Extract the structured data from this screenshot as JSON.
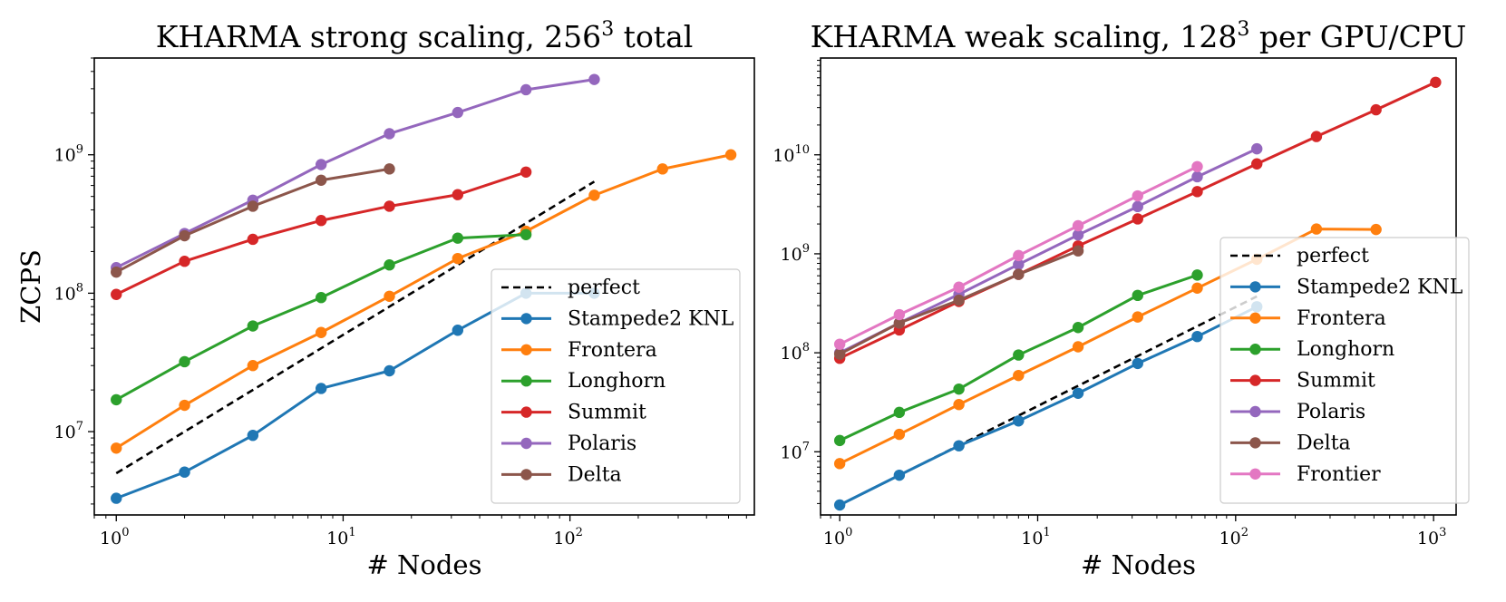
{
  "chart_data": [
    {
      "type": "line",
      "title": "KHARMA strong scaling, 256",
      "title_sup": "3",
      "title_suffix": " total",
      "xlabel": "# Nodes",
      "ylabel": "ZCPS",
      "xscale": "log",
      "yscale": "log",
      "xlim": [
        0.8,
        650
      ],
      "ylim": [
        2500000,
        5000000000
      ],
      "xticks": [
        {
          "value": 1,
          "base": "10",
          "exp": "0"
        },
        {
          "value": 10,
          "base": "10",
          "exp": "1"
        },
        {
          "value": 100,
          "base": "10",
          "exp": "2"
        }
      ],
      "yticks": [
        {
          "value": 10000000,
          "base": "10",
          "exp": "7"
        },
        {
          "value": 100000000,
          "base": "10",
          "exp": "8"
        },
        {
          "value": 1000000000,
          "base": "10",
          "exp": "9"
        }
      ],
      "legend_position": "lower-right",
      "series": [
        {
          "name": "perfect",
          "color": "#000000",
          "dashed": true,
          "markers": false,
          "x": [
            1,
            128
          ],
          "y": [
            5000000,
            640000000
          ]
        },
        {
          "name": "Stampede2 KNL",
          "color": "#1f77b4",
          "dashed": false,
          "markers": true,
          "x": [
            1,
            2,
            4,
            8,
            16,
            32,
            64,
            128
          ],
          "y": [
            3300000,
            5100000,
            9400000,
            20500000,
            27500000,
            54000000,
            100000000,
            100000000
          ]
        },
        {
          "name": "Frontera",
          "color": "#ff7f0e",
          "dashed": false,
          "markers": true,
          "x": [
            1,
            2,
            4,
            8,
            16,
            32,
            64,
            128,
            256,
            512
          ],
          "y": [
            7600000,
            15500000,
            30000000,
            52000000,
            95000000,
            178000000,
            280000000,
            510000000,
            790000000,
            1000000000
          ]
        },
        {
          "name": "Longhorn",
          "color": "#2ca02c",
          "dashed": false,
          "markers": true,
          "x": [
            1,
            2,
            4,
            8,
            16,
            32,
            64
          ],
          "y": [
            17000000,
            32000000,
            58000000,
            93000000,
            160000000,
            250000000,
            265000000
          ]
        },
        {
          "name": "Summit",
          "color": "#d62728",
          "dashed": false,
          "markers": true,
          "x": [
            1,
            2,
            4,
            8,
            16,
            32,
            64
          ],
          "y": [
            98000000,
            170000000,
            245000000,
            335000000,
            425000000,
            515000000,
            750000000
          ]
        },
        {
          "name": "Polaris",
          "color": "#9467bd",
          "dashed": false,
          "markers": true,
          "x": [
            1,
            2,
            4,
            8,
            16,
            32,
            64,
            128
          ],
          "y": [
            153000000,
            270000000,
            470000000,
            850000000,
            1420000000,
            2020000000,
            2950000000,
            3500000000
          ]
        },
        {
          "name": "Delta",
          "color": "#8c564b",
          "dashed": false,
          "markers": true,
          "x": [
            1,
            2,
            4,
            8,
            16
          ],
          "y": [
            142000000,
            260000000,
            425000000,
            655000000,
            790000000
          ]
        }
      ]
    },
    {
      "type": "line",
      "title": "KHARMA weak scaling, 128",
      "title_sup": "3",
      "title_suffix": " per GPU/CPU",
      "xlabel": "# Nodes",
      "ylabel": "",
      "xscale": "log",
      "yscale": "log",
      "xlim": [
        0.8,
        1300
      ],
      "ylim": [
        2300000,
        95000000000
      ],
      "xticks": [
        {
          "value": 1,
          "base": "10",
          "exp": "0"
        },
        {
          "value": 10,
          "base": "10",
          "exp": "1"
        },
        {
          "value": 100,
          "base": "10",
          "exp": "2"
        },
        {
          "value": 1000,
          "base": "10",
          "exp": "3"
        }
      ],
      "yticks": [
        {
          "value": 10000000,
          "base": "10",
          "exp": "7"
        },
        {
          "value": 100000000,
          "base": "10",
          "exp": "8"
        },
        {
          "value": 1000000000,
          "base": "10",
          "exp": "9"
        },
        {
          "value": 10000000000,
          "base": "10",
          "exp": "10"
        }
      ],
      "legend_position": "lower-right",
      "series": [
        {
          "name": "perfect",
          "color": "#000000",
          "dashed": true,
          "markers": false,
          "x": [
            1,
            128
          ],
          "y": [
            2900000,
            371000000
          ]
        },
        {
          "name": "Stampede2 KNL",
          "color": "#1f77b4",
          "dashed": false,
          "markers": true,
          "x": [
            1,
            2,
            4,
            8,
            16,
            32,
            64,
            128
          ],
          "y": [
            2900000,
            5800000,
            11500000,
            20500000,
            39000000,
            78000000,
            146000000,
            292000000
          ]
        },
        {
          "name": "Frontera",
          "color": "#ff7f0e",
          "dashed": false,
          "markers": true,
          "x": [
            1,
            2,
            4,
            8,
            16,
            32,
            64,
            128,
            256,
            512
          ],
          "y": [
            7600000,
            15000000,
            30000000,
            59000000,
            115000000,
            230000000,
            450000000,
            880000000,
            1780000000,
            1760000000
          ]
        },
        {
          "name": "Longhorn",
          "color": "#2ca02c",
          "dashed": false,
          "markers": true,
          "x": [
            1,
            2,
            4,
            8,
            16,
            32,
            64
          ],
          "y": [
            13000000,
            25000000,
            43000000,
            95000000,
            180000000,
            380000000,
            610000000
          ]
        },
        {
          "name": "Summit",
          "color": "#d62728",
          "dashed": false,
          "markers": true,
          "x": [
            1,
            2,
            4,
            8,
            16,
            32,
            64,
            128,
            256,
            512,
            1024
          ],
          "y": [
            88000000,
            170000000,
            330000000,
            620000000,
            1200000000,
            2250000000,
            4250000000,
            8100000000,
            15300000000,
            28500000000,
            54000000000
          ]
        },
        {
          "name": "Polaris",
          "color": "#9467bd",
          "dashed": false,
          "markers": true,
          "x": [
            1,
            2,
            4,
            8,
            16,
            32,
            64,
            128
          ],
          "y": [
            100000000,
            200000000,
            390000000,
            780000000,
            1550000000,
            3000000000,
            6000000000,
            11500000000
          ]
        },
        {
          "name": "Delta",
          "color": "#8c564b",
          "dashed": false,
          "markers": true,
          "x": [
            1,
            2,
            4,
            8,
            16
          ],
          "y": [
            97000000,
            200000000,
            340000000,
            620000000,
            1070000000
          ]
        },
        {
          "name": "Frontier",
          "color": "#e377c2",
          "dashed": false,
          "markers": true,
          "x": [
            1,
            2,
            4,
            8,
            16,
            32,
            64
          ],
          "y": [
            122000000,
            243000000,
            460000000,
            960000000,
            1920000000,
            3850000000,
            7600000000
          ]
        }
      ]
    }
  ]
}
